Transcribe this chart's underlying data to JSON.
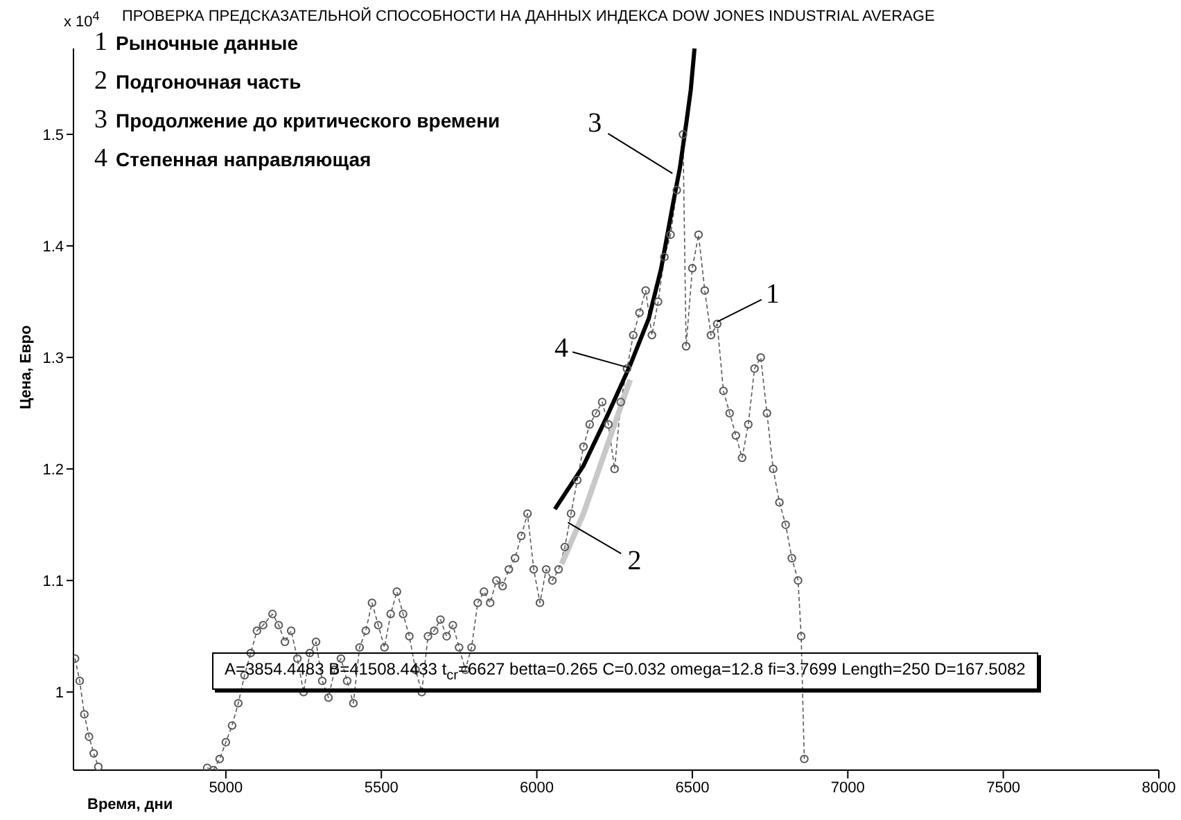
{
  "chart_data": {
    "type": "line",
    "title": "ПРОВЕРКА ПРЕДСКАЗАТЕЛЬНОЙ СПОСОБНОСТИ НА ДАННЫХ ИНДЕКСА DOW JONES INDUSTRIAL AVERAGE",
    "xlabel": "Время, дни",
    "ylabel": "Цена, Евро",
    "xlim": [
      4510,
      8000
    ],
    "xticks": [
      5000,
      5500,
      6000,
      6500,
      7000,
      7500,
      8000
    ],
    "ylim": [
      0.93,
      1.577
    ],
    "yticks": [
      {
        "value": 1,
        "label": "1"
      },
      1.1,
      1.2,
      1.3,
      1.4,
      1.5
    ],
    "grid": false,
    "legend": false,
    "series": [
      {
        "color": "#5a5a5a",
        "marker": "circle",
        "line_style": "dashed",
        "x": [
          4515,
          4530,
          4545,
          4560,
          4575,
          4590,
          4600,
          4940,
          4960,
          4980,
          5000,
          5020,
          5040,
          5060,
          5080,
          5100,
          5120,
          5150,
          5170,
          5190,
          5210,
          5230,
          5250,
          5270,
          5290,
          5310,
          5330,
          5350,
          5370,
          5390,
          5410,
          5430,
          5450,
          5470,
          5490,
          5510,
          5530,
          5550,
          5570,
          5590,
          5610,
          5630,
          5650,
          5670,
          5690,
          5710,
          5730,
          5750,
          5770,
          5790,
          5810,
          5830,
          5850,
          5870,
          5890,
          5910,
          5930,
          5950,
          5970,
          5990,
          6010,
          6030,
          6050,
          6070,
          6090,
          6110,
          6130,
          6150,
          6170,
          6190,
          6210,
          6230,
          6250,
          6270,
          6290,
          6310,
          6330,
          6350,
          6370,
          6390,
          6410,
          6430,
          6450,
          6470,
          6480,
          6500,
          6520,
          6540,
          6560,
          6580,
          6600,
          6620,
          6640,
          6660,
          6680,
          6700,
          6720,
          6740,
          6760,
          6780,
          6800,
          6820,
          6840,
          6850,
          6860
        ],
        "values": [
          1.03,
          1.01,
          0.98,
          0.96,
          0.945,
          0.933,
          null,
          0.932,
          0.93,
          0.94,
          0.955,
          0.97,
          0.99,
          1.015,
          1.035,
          1.055,
          1.06,
          1.07,
          1.06,
          1.045,
          1.055,
          1.03,
          1.0,
          1.035,
          1.045,
          1.01,
          0.995,
          1.02,
          1.03,
          1.01,
          0.99,
          1.04,
          1.055,
          1.08,
          1.06,
          1.04,
          1.07,
          1.09,
          1.07,
          1.05,
          1.02,
          1.0,
          1.05,
          1.055,
          1.065,
          1.05,
          1.06,
          1.04,
          1.02,
          1.04,
          1.08,
          1.09,
          1.08,
          1.1,
          1.095,
          1.11,
          1.12,
          1.14,
          1.16,
          1.11,
          1.08,
          1.11,
          1.1,
          1.11,
          1.13,
          1.16,
          1.19,
          1.22,
          1.24,
          1.25,
          1.26,
          1.24,
          1.2,
          1.26,
          1.29,
          1.32,
          1.34,
          1.36,
          1.32,
          1.35,
          1.39,
          1.41,
          1.45,
          1.5,
          1.31,
          1.38,
          1.41,
          1.36,
          1.32,
          1.33,
          1.27,
          1.25,
          1.23,
          1.21,
          1.24,
          1.29,
          1.3,
          1.25,
          1.2,
          1.17,
          1.15,
          1.12,
          1.1,
          1.05,
          0.94
        ]
      },
      {
        "color": "#c8c8c8",
        "x": [
          6080,
          6150,
          6200,
          6250,
          6300
        ],
        "values": [
          1.115,
          1.16,
          1.2,
          1.24,
          1.28
        ]
      },
      {
        "color": "#000000",
        "x": [
          6058,
          6150,
          6227,
          6300,
          6360,
          6400,
          6436,
          6460,
          6480,
          6495,
          6507
        ],
        "values": [
          1.164,
          1.203,
          1.248,
          1.293,
          1.335,
          1.38,
          1.435,
          1.47,
          1.509,
          1.54,
          1.577
        ]
      }
    ],
    "annotations": [
      "1 Рыночные данные",
      "2 Подгоночная часть",
      "3 Продолжение до критического времени",
      "4 Степенная направляющая",
      "x 10$^{4}$",
      "A=3854.4483 B=41508.4433 t$_{cr}$=6627 betta=0.265 C=0.032 omega=12.8 fi=3.7699 Length=250 D=167.5082",
      {
        "text": "1",
        "x": 6580,
        "y": 1.332
      },
      {
        "text": "2",
        "x": 6100,
        "y": 1.152
      },
      {
        "text": "3",
        "x": 6436,
        "y": 1.465
      },
      {
        "text": "4",
        "x": 6293,
        "y": 1.291
      }
    ]
  }
}
